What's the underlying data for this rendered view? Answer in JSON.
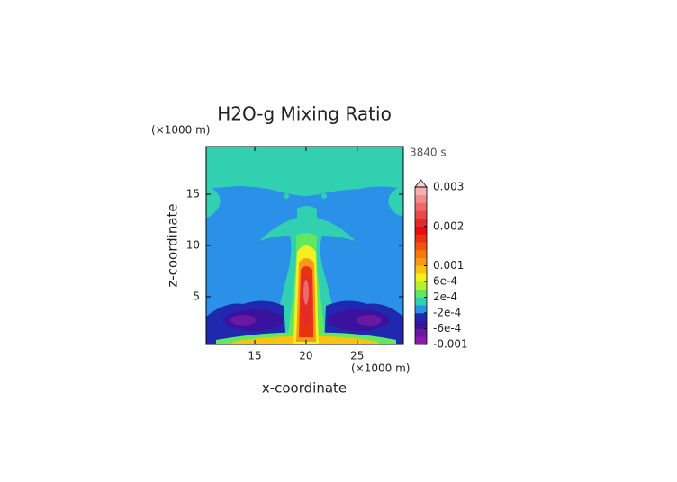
{
  "chart_data": {
    "type": "contour",
    "title": "H2O-g Mixing Ratio",
    "y_unit": "(×1000 m)",
    "x_unit": "(×1000 m)",
    "time_label": "3840 s",
    "xlabel": "x-coordinate",
    "ylabel": "z-coordinate",
    "xlim": [
      10.25,
      29.5
    ],
    "xticks": [
      15,
      20,
      25
    ],
    "ylim": [
      0.35,
      19.65
    ],
    "yticks": [
      5,
      10,
      15
    ],
    "colorbar": {
      "lim": [
        -0.001,
        0.003
      ],
      "ticks": [
        -0.001,
        {
          "value": -0.0006,
          "label": "-6e-4"
        },
        {
          "value": -0.0002,
          "label": "-2e-4"
        },
        {
          "value": 0.0002,
          "label": "2e-4"
        },
        {
          "value": 0.0006,
          "label": "6e-4"
        },
        0.001,
        0.002,
        0.003
      ],
      "colors": [
        "#8a1ab0",
        "#6a18a0",
        "#3a129e",
        "#2028b0",
        "#2a90e8",
        "#30d0b0",
        "#60e860",
        "#b8f030",
        "#f4f020",
        "#f8c410",
        "#f89a18",
        "#f87810",
        "#f05410",
        "#e83210",
        "#e41010",
        "#e42a2a",
        "#e84a4a",
        "#ee6a6a",
        "#f28c8c",
        "#f6aeae"
      ],
      "overflow_color": "#fcd4d4"
    }
  }
}
